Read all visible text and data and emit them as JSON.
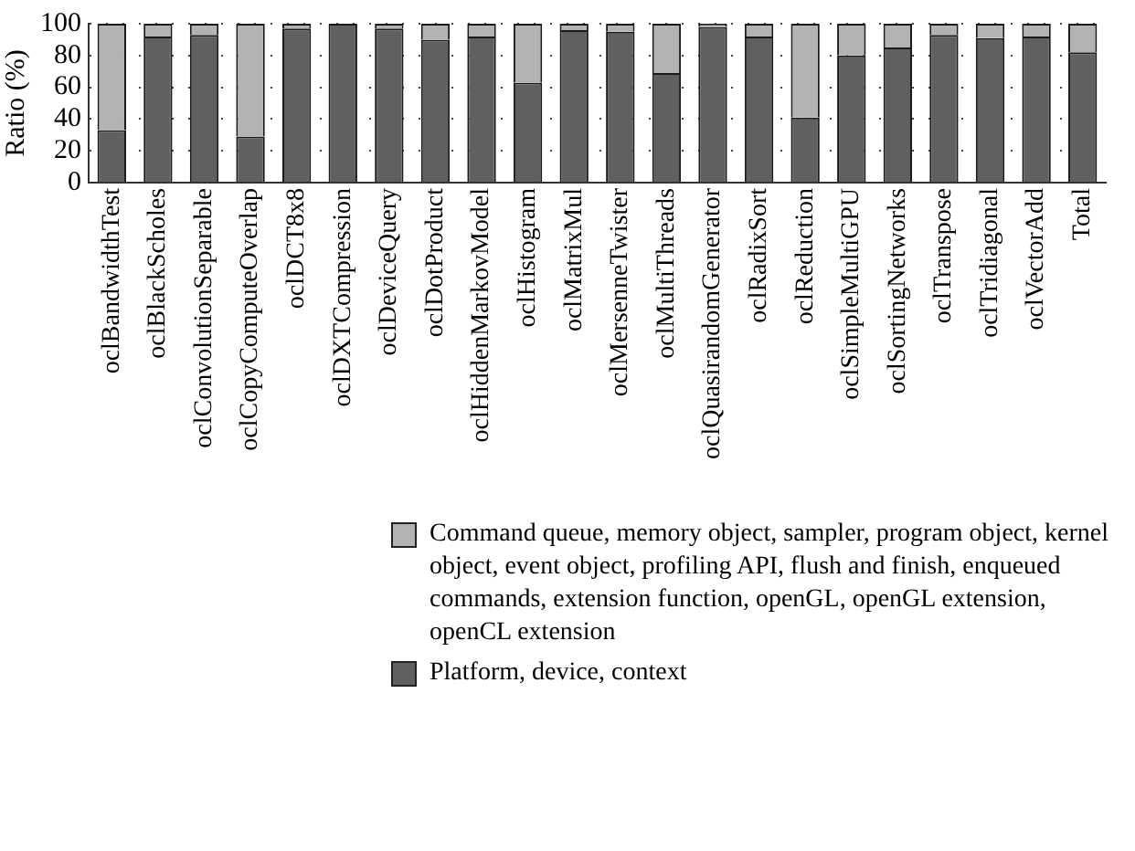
{
  "chart_data": {
    "type": "bar",
    "stacked": true,
    "ylabel": "Ratio (%)",
    "ylim": [
      0,
      100
    ],
    "yticks": [
      0,
      20,
      40,
      60,
      80,
      100
    ],
    "grid": "y",
    "legend": "bottom",
    "categories": [
      "oclBandwidthTest",
      "oclBlackScholes",
      "oclConvolutionSeparable",
      "oclCopyComputeOverlap",
      "oclDCT8x8",
      "oclDXTCompression",
      "oclDeviceQuery",
      "oclDotProduct",
      "oclHiddenMarkovModel",
      "oclHistogram",
      "oclMatrixMul",
      "oclMersenneTwister",
      "oclMultiThreads",
      "oclQuasirandomGenerator",
      "oclRadixSort",
      "oclReduction",
      "oclSimpleMultiGPU",
      "oclSortingNetworks",
      "oclTranspose",
      "oclTridiagonal",
      "oclVectorAdd",
      "Total"
    ],
    "series": [
      {
        "name": "Platform, device, context",
        "color": "#606060",
        "values": [
          33,
          92,
          93,
          29,
          97,
          100,
          97,
          90,
          92,
          63,
          96,
          95,
          69,
          98,
          92,
          41,
          80,
          85,
          93,
          91,
          92,
          82
        ]
      },
      {
        "name": "Command queue, memory object, sampler, program object, kernel object, event object, profiling API, flush and finish, enqueued commands, extension function, openGL, openGL extension, openCL extension",
        "color": "#b3b3b3",
        "values": [
          67,
          8,
          7,
          71,
          3,
          null,
          3,
          10,
          8,
          37,
          4,
          5,
          31,
          2,
          8,
          59,
          20,
          15,
          7,
          9,
          8,
          18
        ]
      }
    ]
  }
}
